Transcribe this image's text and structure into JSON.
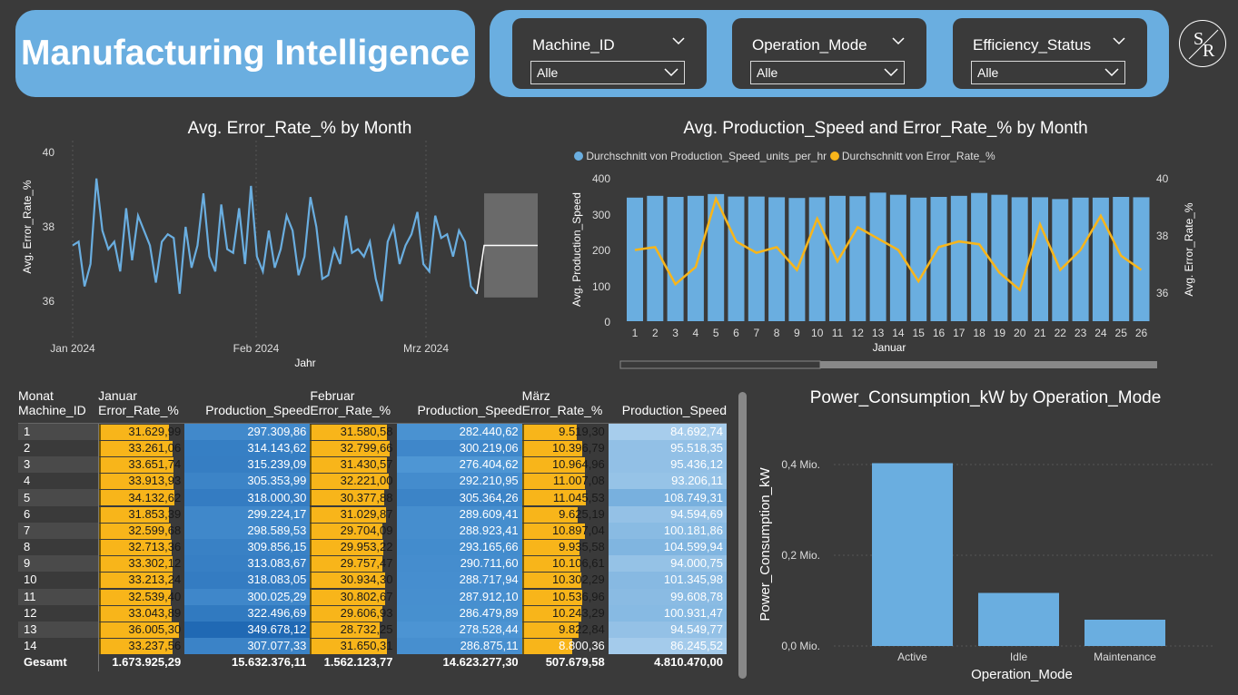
{
  "header": {
    "title": "Manufacturing Intelligence",
    "logo_text": "SR"
  },
  "filters": [
    {
      "label": "Machine_ID",
      "value": "Alle"
    },
    {
      "label": "Operation_Mode",
      "value": "Alle"
    },
    {
      "label": "Efficiency_Status",
      "value": "Alle"
    }
  ],
  "chart1": {
    "title": "Avg. Error_Rate_% by Month",
    "ylabel": "Avg. Error_Rate_%",
    "xlabel": "Jahr",
    "yticks": [
      "40",
      "38",
      "36"
    ],
    "xticks": [
      "Jan 2024",
      "Feb 2024",
      "Mrz 2024"
    ]
  },
  "chart2": {
    "title": "Avg. Production_Speed and Error_Rate_% by Month",
    "legend": [
      "Durchschnitt von Production_Speed_units_per_hr",
      "Durchschnitt von Error_Rate_%"
    ],
    "ylabel_left": "Avg. Production_Speed",
    "ylabel_right": "Avg. Error_Rate_%",
    "xlabel": "Januar",
    "yticks_left": [
      "400",
      "300",
      "200",
      "100",
      "0"
    ],
    "yticks_right": [
      "40",
      "38",
      "36"
    ]
  },
  "chart3": {
    "title": "Power_Consumption_kW by Operation_Mode",
    "ylabel": "Power_Consumption_kW",
    "xlabel": "Operation_Mode",
    "yticks": [
      "0,4 Mio.",
      "0,2 Mio.",
      "0,0 Mio."
    ]
  },
  "chart_data": [
    {
      "type": "line",
      "title": "Avg. Error_Rate_% by Month",
      "ylabel": "Avg. Error_Rate_%",
      "xlabel": "Jahr",
      "ylim": [
        35,
        40
      ],
      "series": [
        {
          "name": "Avg. Error_Rate_%",
          "values": [
            37.5,
            37.6,
            36.4,
            37.0,
            39.3,
            37.9,
            37.4,
            37.6,
            36.8,
            38.5,
            37.1,
            38.3,
            37.9,
            37.5,
            36.5,
            37.6,
            37.8,
            37.7,
            36.2,
            38.0,
            36.9,
            37.5,
            38.9,
            37.2,
            36.8,
            38.6,
            37.4,
            37.3,
            38.5,
            37.0,
            39.1,
            37.2,
            36.8,
            37.9,
            36.9,
            37.4,
            38.3,
            37.9,
            36.7,
            37.2,
            38.8,
            38.0,
            36.6,
            36.7,
            37.4,
            37.0,
            38.3,
            37.3,
            37.4,
            37.2,
            37.6,
            36.6,
            36.0,
            37.6,
            38.0,
            37.0,
            37.5,
            37.8,
            38.4,
            37.0,
            36.8,
            38.3,
            37.7,
            37.8,
            37.2,
            37.9,
            37.6,
            36.4,
            36.2
          ]
        }
      ],
      "forecast": {
        "value": 37.5,
        "upper": 38.9,
        "lower": 36.1
      }
    },
    {
      "type": "bar",
      "title": "Avg. Production_Speed and Error_Rate_% by Month",
      "xlabel": "Januar",
      "categories": [
        "1",
        "2",
        "3",
        "4",
        "5",
        "6",
        "7",
        "8",
        "9",
        "10",
        "11",
        "12",
        "13",
        "14",
        "15",
        "16",
        "17",
        "18",
        "19",
        "20",
        "21",
        "22",
        "23",
        "24",
        "25",
        "26"
      ],
      "series": [
        {
          "name": "Durchschnitt von Production_Speed_units_per_hr",
          "values": [
            347,
            352,
            349,
            352,
            357,
            350,
            350,
            348,
            346,
            348,
            352,
            351,
            361,
            355,
            347,
            349,
            352,
            360,
            355,
            348,
            348,
            343,
            347,
            347,
            349,
            348
          ]
        },
        {
          "name": "Durchschnitt von Error_Rate_%",
          "values": [
            37.5,
            37.6,
            36.3,
            36.9,
            39.3,
            37.8,
            37.4,
            37.6,
            36.8,
            38.6,
            37.1,
            38.3,
            37.9,
            37.5,
            36.4,
            37.6,
            37.8,
            37.7,
            36.7,
            36.1,
            38.4,
            36.8,
            37.5,
            38.7,
            37.3,
            36.8
          ]
        }
      ],
      "ylim_left": [
        0,
        400
      ],
      "ylim_right": [
        35,
        40
      ]
    },
    {
      "type": "bar",
      "title": "Power_Consumption_kW by Operation_Mode",
      "xlabel": "Operation_Mode",
      "ylabel": "Power_Consumption_kW",
      "categories": [
        "Active",
        "Idle",
        "Maintenance"
      ],
      "values": [
        0.403,
        0.117,
        0.058
      ],
      "unit": "Mio.",
      "ylim": [
        0,
        0.4
      ]
    }
  ],
  "table": {
    "hdr_top": [
      "Monat",
      "Januar",
      "",
      "Februar",
      "",
      "März",
      ""
    ],
    "hdr_bot": [
      "Machine_ID",
      "Error_Rate_%",
      "Production_Speed",
      "Error_Rate_%",
      "Production_Speed",
      "Error_Rate_%",
      "Production_Speed"
    ],
    "rows": [
      [
        "1",
        "31.629,99",
        "297.309,86",
        "31.580,58",
        "282.440,62",
        "9.519,30",
        "84.692,74"
      ],
      [
        "2",
        "33.261,06",
        "314.143,62",
        "32.799,66",
        "300.219,06",
        "10.396,79",
        "95.518,35"
      ],
      [
        "3",
        "33.651,74",
        "315.239,09",
        "31.430,57",
        "276.404,62",
        "10.964,96",
        "95.436,12"
      ],
      [
        "4",
        "33.913,93",
        "305.353,99",
        "32.221,00",
        "292.210,95",
        "11.007,08",
        "93.206,11"
      ],
      [
        "5",
        "34.132,62",
        "318.000,30",
        "30.377,88",
        "305.364,26",
        "11.045,53",
        "108.749,31"
      ],
      [
        "6",
        "31.853,39",
        "299.224,17",
        "31.029,87",
        "289.609,41",
        "9.625,19",
        "94.594,69"
      ],
      [
        "7",
        "32.599,68",
        "298.589,53",
        "29.704,09",
        "288.923,41",
        "10.897,04",
        "100.181,86"
      ],
      [
        "8",
        "32.713,36",
        "309.856,15",
        "29.953,22",
        "293.165,66",
        "9.935,58",
        "104.599,94"
      ],
      [
        "9",
        "33.302,12",
        "313.083,67",
        "29.757,47",
        "290.711,60",
        "10.106,61",
        "94.000,75"
      ],
      [
        "10",
        "33.213,24",
        "318.083,05",
        "30.934,30",
        "288.717,94",
        "10.302,29",
        "101.345,98"
      ],
      [
        "11",
        "32.539,40",
        "300.025,29",
        "30.802,67",
        "287.912,10",
        "10.536,96",
        "99.608,78"
      ],
      [
        "12",
        "33.043,89",
        "322.496,69",
        "29.606,93",
        "286.479,89",
        "10.243,29",
        "100.931,47"
      ],
      [
        "13",
        "36.005,30",
        "349.678,12",
        "28.732,25",
        "278.528,44",
        "9.822,84",
        "94.549,77"
      ],
      [
        "14",
        "33.237,56",
        "307.077,33",
        "31.650,31",
        "286.875,11",
        "8.800,36",
        "86.245,52"
      ]
    ],
    "total": [
      "Gesamt",
      "1.673.925,29",
      "15.632.376,11",
      "1.562.123,77",
      "14.623.277,30",
      "507.679,58",
      "4.810.470,00"
    ]
  },
  "colors": {
    "accent": "#6aaee0",
    "bar": "#6aaee0",
    "line": "#f8b51a",
    "bg": "#3a3a3a"
  }
}
